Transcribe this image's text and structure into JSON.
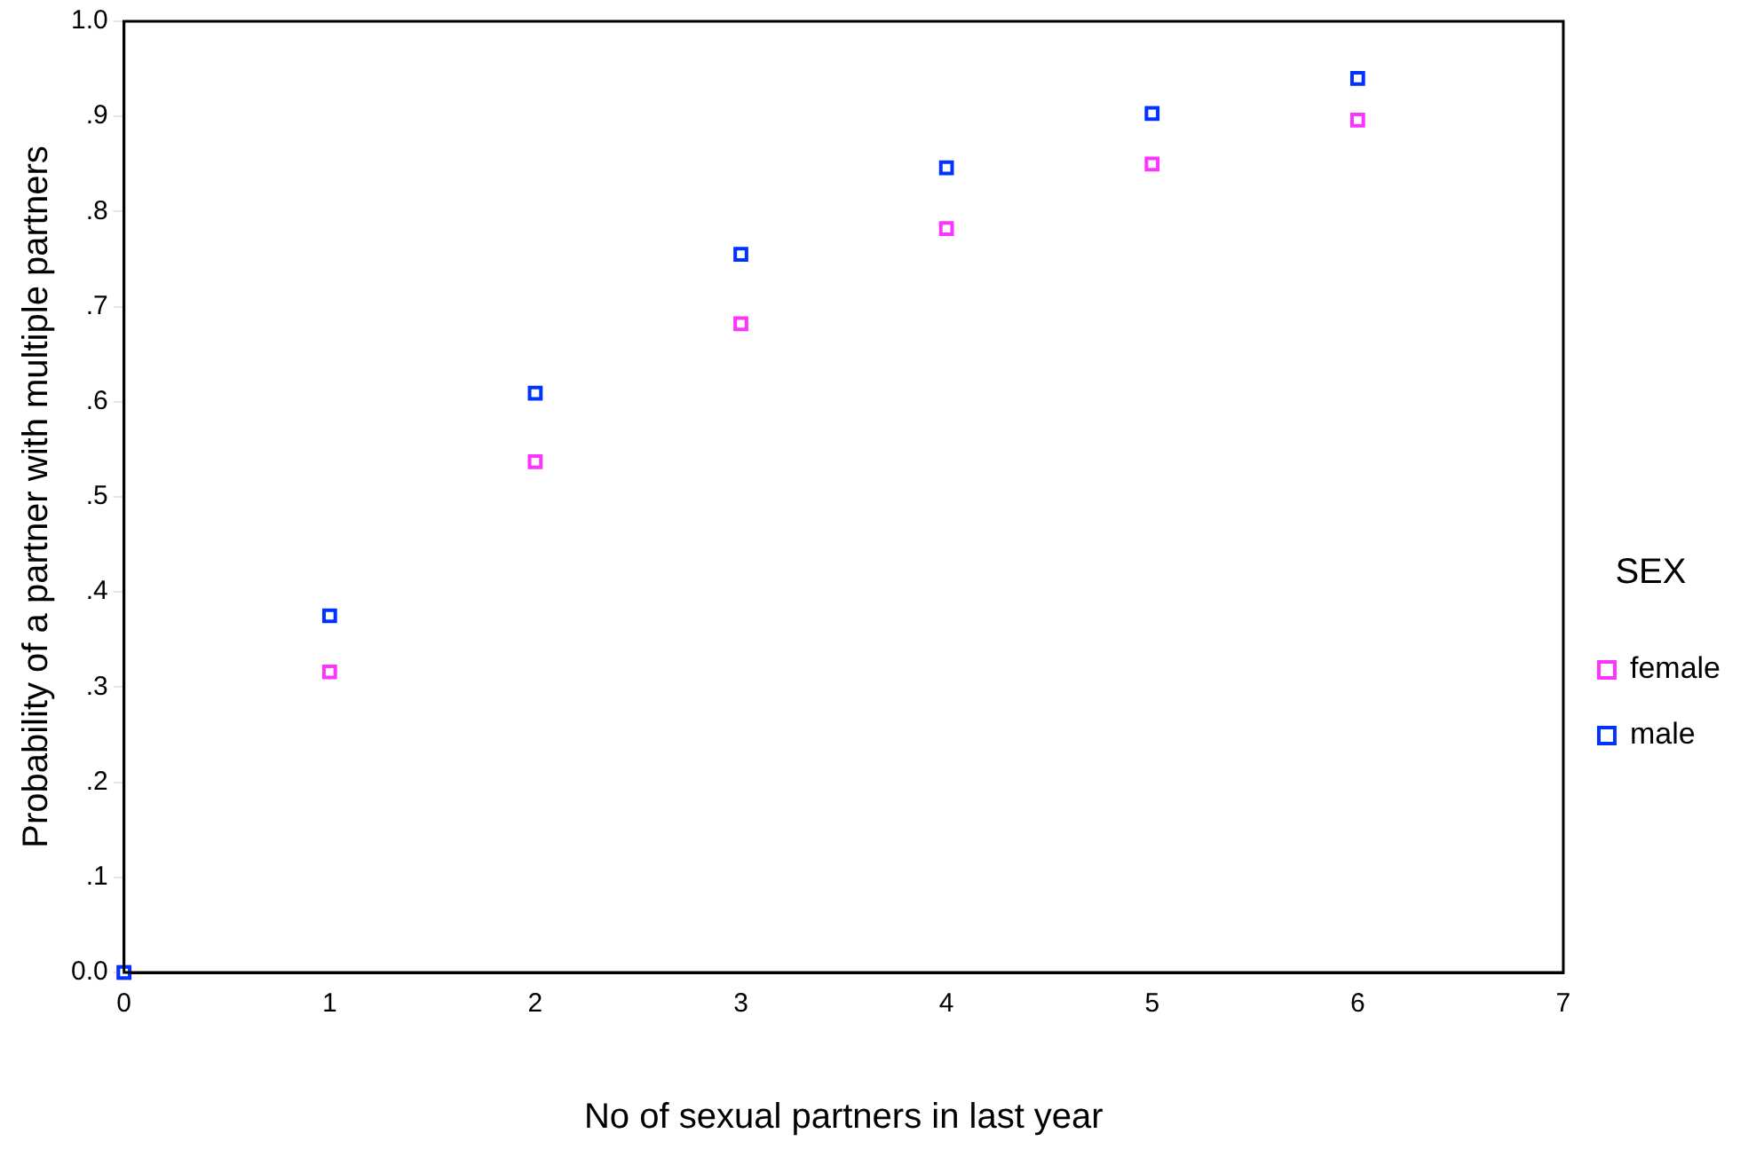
{
  "chart_data": {
    "type": "scatter",
    "xlabel": "No of sexual partners in last year",
    "ylabel": "Probability of a partner with multiple partners",
    "legend_title": "SEX",
    "legend": "right",
    "marker": "square",
    "grid": false,
    "xlim": [
      0,
      7
    ],
    "xticks": [
      0,
      1,
      2,
      3,
      4,
      5,
      6,
      7
    ],
    "ylim": [
      0,
      1
    ],
    "yticks": [
      {
        "value": 0,
        "label": "0.0"
      },
      {
        "value": 0.1,
        "label": ".1"
      },
      {
        "value": 0.2,
        "label": ".2"
      },
      {
        "value": 0.3,
        "label": ".3"
      },
      {
        "value": 0.4,
        "label": ".4"
      },
      {
        "value": 0.5,
        "label": ".5"
      },
      {
        "value": 0.6,
        "label": ".6"
      },
      {
        "value": 0.7,
        "label": ".7"
      },
      {
        "value": 0.8,
        "label": ".8"
      },
      {
        "value": 0.9,
        "label": ".9"
      },
      {
        "value": 1,
        "label": "1.0"
      }
    ],
    "series": [
      {
        "name": "female",
        "color": "#ff33ff",
        "x": [
          0,
          1,
          2,
          3,
          4,
          5,
          6
        ],
        "values": [
          0,
          0.316,
          0.537,
          0.682,
          0.782,
          0.85,
          0.896
        ]
      },
      {
        "name": "male",
        "color": "#0033ff",
        "x": [
          0,
          1,
          2,
          3,
          4,
          5,
          6
        ],
        "values": [
          0,
          0.375,
          0.609,
          0.755,
          0.846,
          0.903,
          0.94
        ]
      }
    ]
  }
}
